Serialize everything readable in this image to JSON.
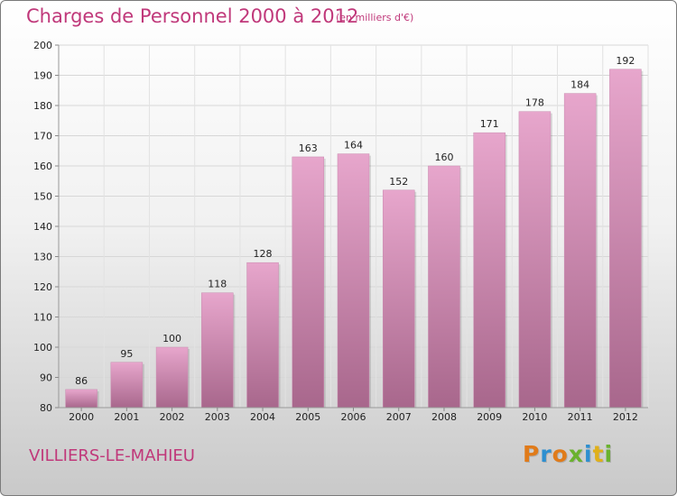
{
  "title": "Charges de Personnel 2000 à 2012",
  "subtitle": "(en milliers d'€)",
  "city": "VILLIERS-LE-MAHIEU",
  "logo": {
    "letters": [
      "P",
      "r",
      "o",
      "x",
      "i",
      "t",
      "i"
    ],
    "colors": [
      "#e07b1a",
      "#2d8fd0",
      "#e07b1a",
      "#6ab22e",
      "#2d8fd0",
      "#e0b01a",
      "#6ab22e"
    ]
  },
  "colors": {
    "bar": "#d98bb8",
    "bar_dark": "#b56f97",
    "accent": "#c0387a"
  },
  "chart_data": {
    "type": "bar",
    "title": "Charges de Personnel 2000 à 2012",
    "xlabel": "",
    "ylabel": "",
    "categories": [
      "2000",
      "2001",
      "2002",
      "2003",
      "2004",
      "2005",
      "2006",
      "2007",
      "2008",
      "2009",
      "2010",
      "2011",
      "2012"
    ],
    "values": [
      86,
      95,
      100,
      118,
      128,
      163,
      164,
      152,
      160,
      171,
      178,
      184,
      192
    ],
    "ylim": [
      80,
      200
    ],
    "yticks": [
      80,
      90,
      100,
      110,
      120,
      130,
      140,
      150,
      160,
      170,
      180,
      190,
      200
    ],
    "grid": true,
    "legend": "none"
  }
}
